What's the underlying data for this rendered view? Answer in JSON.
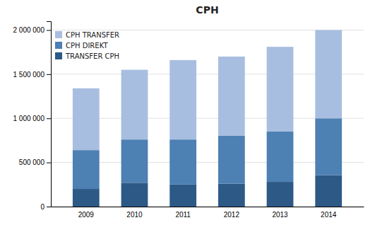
{
  "chart_data": {
    "type": "bar",
    "stacked": true,
    "title": "CPH",
    "categories": [
      "2009",
      "2010",
      "2011",
      "2012",
      "2013",
      "2014"
    ],
    "series": [
      {
        "name": "TRANSFER CPH",
        "color": "#2d5986",
        "values": [
          200000,
          270000,
          250000,
          260000,
          280000,
          355000
        ]
      },
      {
        "name": "CPH DIREKT",
        "color": "#4d80b3",
        "values": [
          440000,
          490000,
          510000,
          545000,
          570000,
          645000
        ]
      },
      {
        "name": "CPH TRANSFER",
        "color": "#a8bee0",
        "values": [
          700000,
          790000,
          900000,
          895000,
          960000,
          1000000
        ]
      }
    ],
    "ylim": [
      0,
      2100000
    ],
    "yticks": [
      0,
      {
        "value": 500000,
        "label": "500 000"
      },
      {
        "value": 1000000,
        "label": "1 000 000"
      },
      {
        "value": 1500000,
        "label": "1 500 000"
      },
      {
        "value": 2000000,
        "label": "2 000 000"
      }
    ],
    "grid": true,
    "legend": "upper left"
  }
}
